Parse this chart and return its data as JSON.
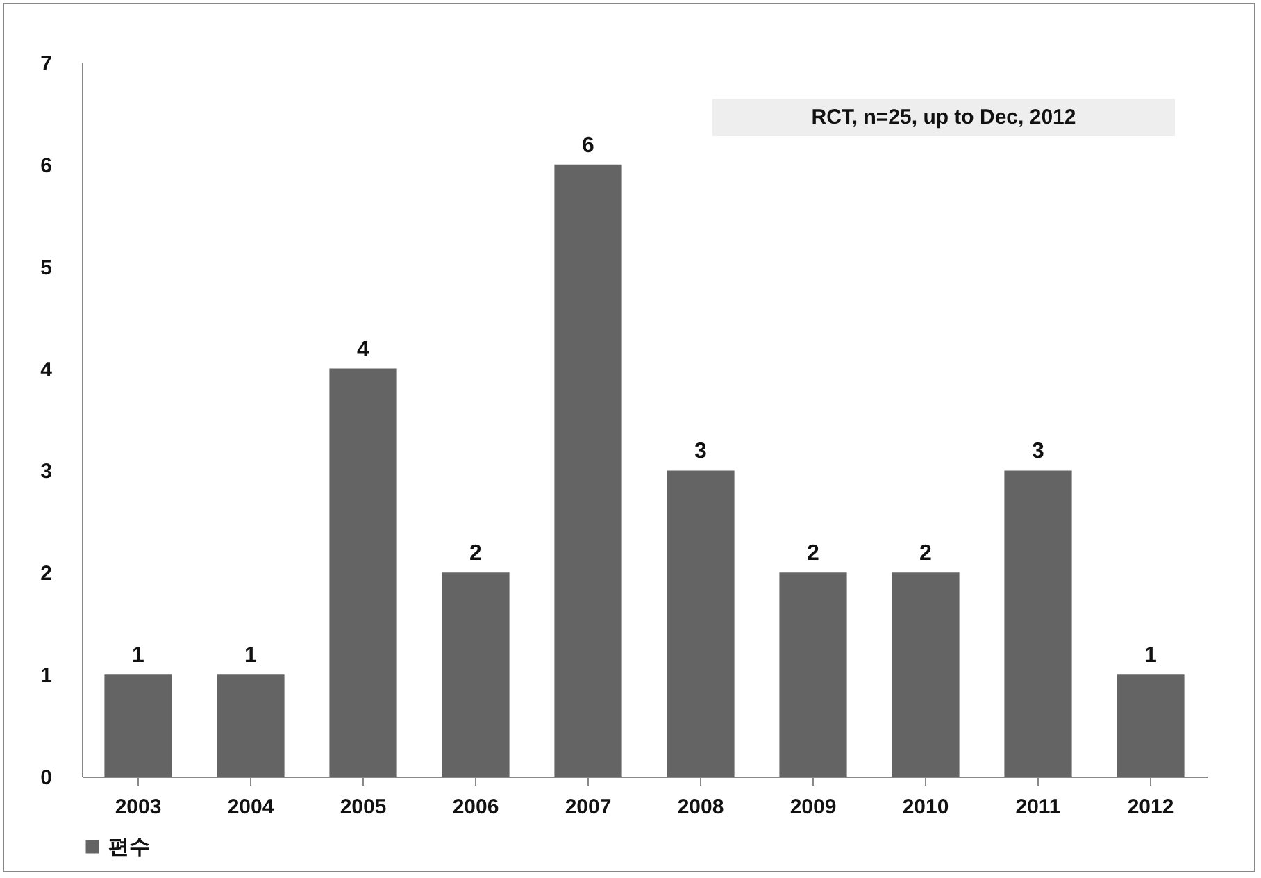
{
  "chart_data": {
    "type": "bar",
    "categories": [
      "2003",
      "2004",
      "2005",
      "2006",
      "2007",
      "2008",
      "2009",
      "2010",
      "2011",
      "2012"
    ],
    "series": [
      {
        "name": "편수",
        "color": "#646464",
        "values": [
          1,
          1,
          4,
          2,
          6,
          3,
          2,
          2,
          3,
          1
        ]
      }
    ],
    "ylim": [
      0,
      7
    ],
    "yticks": [
      0,
      1,
      2,
      3,
      4,
      5,
      6,
      7
    ],
    "grid": false,
    "data_labels": true,
    "legend": "bottom",
    "annotations": [
      "RCT, n=25, up to Dec, 2012"
    ]
  }
}
